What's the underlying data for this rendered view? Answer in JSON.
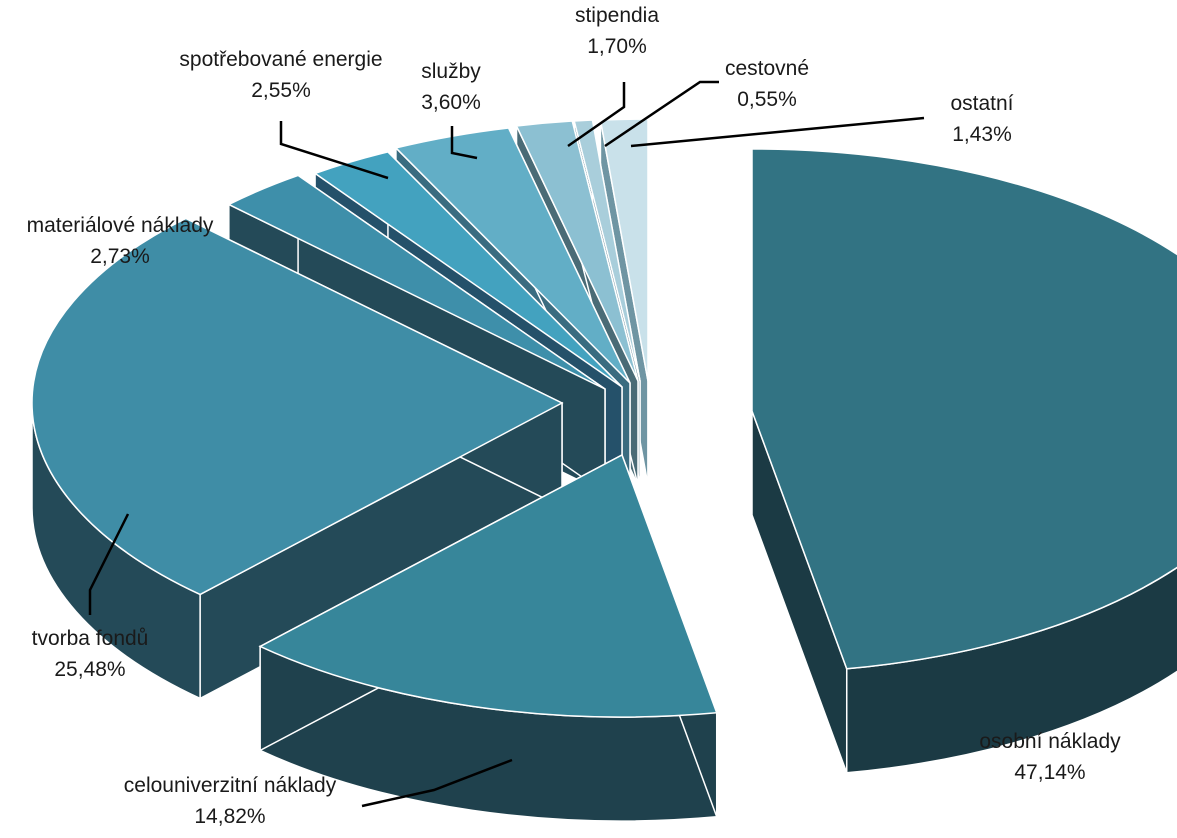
{
  "chart_data": {
    "type": "pie",
    "style": "3d-exploded",
    "categories": [
      "osobní náklady",
      "celouniverzitní náklady",
      "tvorba fondů",
      "materiálové náklady",
      "spotřebované energie",
      "služby",
      "stipendia",
      "cestovné",
      "ostatní"
    ],
    "values": [
      47.14,
      14.82,
      25.48,
      2.73,
      2.55,
      3.6,
      1.7,
      0.55,
      1.43
    ],
    "value_labels": [
      "47,14%",
      "14,82%",
      "25,48%",
      "2,73%",
      "2,55%",
      "3,60%",
      "1,70%",
      "0,55%",
      "1,43%"
    ],
    "colors": {
      "top": [
        "#327383",
        "#37869A",
        "#3F8DA6",
        "#3E8FAA",
        "#43A2BF",
        "#62AEC6",
        "#8CC0D2",
        "#A9CEDB",
        "#C9E1EA"
      ],
      "side": [
        "#1B3A44",
        "#1F414D",
        "#244A58",
        "#244A58",
        "#25516A",
        "#3A6C80",
        "#4A6B76",
        "#5E8090",
        "#6F95A3"
      ]
    },
    "legend": "none",
    "data_labels": "outside-with-leaders"
  }
}
